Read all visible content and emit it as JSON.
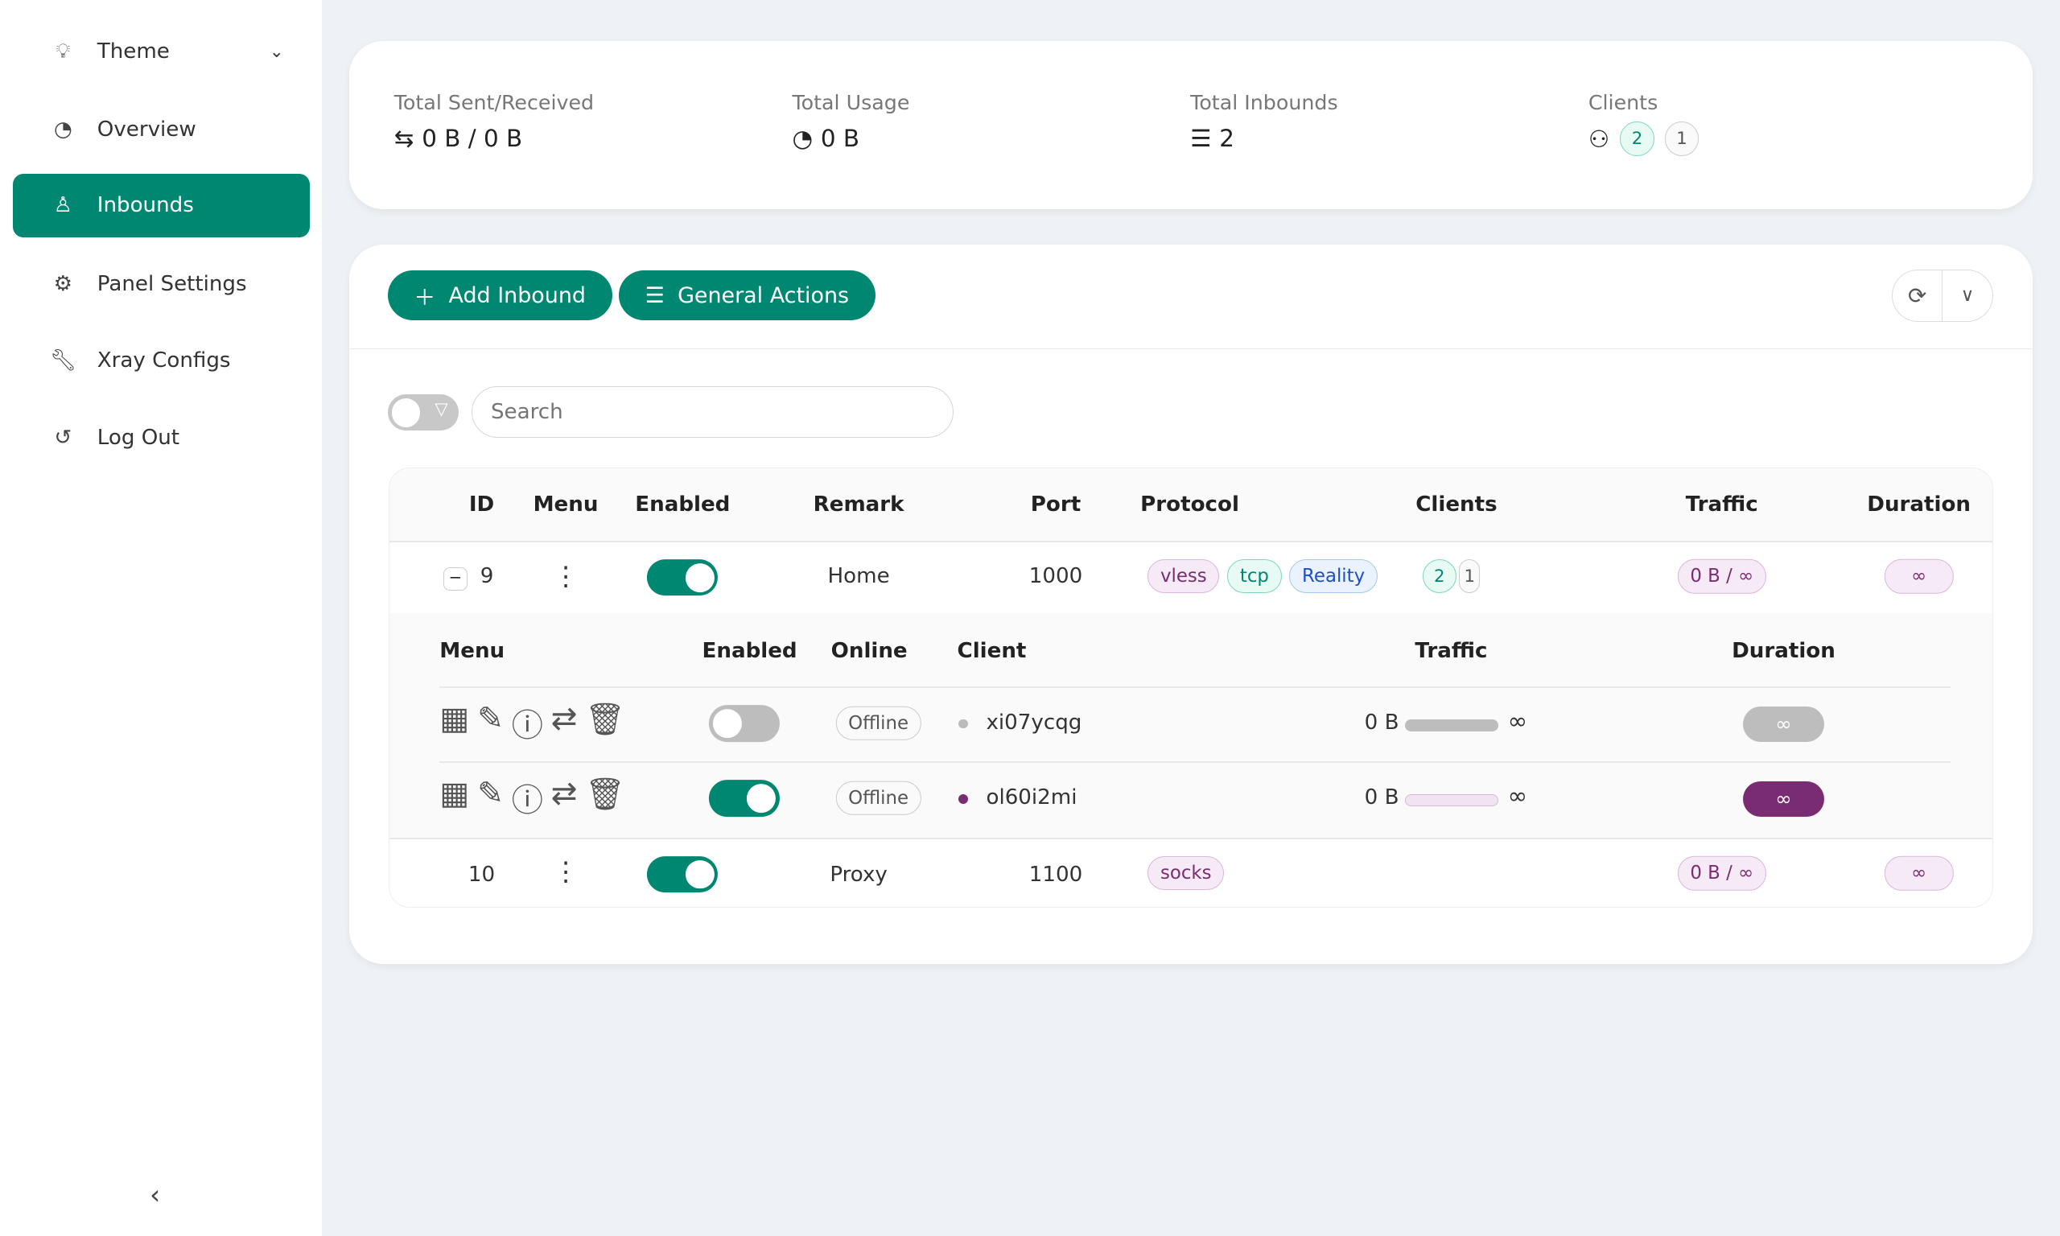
{
  "sidebar": {
    "items": [
      {
        "label": "Theme",
        "icon": "lightbulb-icon"
      },
      {
        "label": "Overview",
        "icon": "dashboard-icon"
      },
      {
        "label": "Inbounds",
        "icon": "user-icon",
        "active": true
      },
      {
        "label": "Panel Settings",
        "icon": "gear-icon"
      },
      {
        "label": "Xray Configs",
        "icon": "tool-icon"
      },
      {
        "label": "Log Out",
        "icon": "logout-icon"
      }
    ]
  },
  "stats": {
    "sent_received": {
      "label": "Total Sent/Received",
      "value": "0 B / 0 B"
    },
    "usage": {
      "label": "Total Usage",
      "value": "0 B"
    },
    "inbounds": {
      "label": "Total Inbounds",
      "value": "2"
    },
    "clients": {
      "label": "Clients",
      "active": "2",
      "total": "1"
    }
  },
  "toolbar": {
    "add_inbound": "Add Inbound",
    "general_actions": "General Actions"
  },
  "search": {
    "placeholder": "Search",
    "value": ""
  },
  "table": {
    "headers": [
      "ID",
      "Menu",
      "Enabled",
      "Remark",
      "Port",
      "Protocol",
      "Clients",
      "Traffic",
      "Duration"
    ],
    "rows": [
      {
        "id": "9",
        "enabled": true,
        "remark": "Home",
        "port": "1000",
        "protocol": [
          "vless",
          "tcp",
          "Reality"
        ],
        "clients_active": "2",
        "clients_total": "1",
        "traffic": "0 B / ∞",
        "duration": "∞"
      },
      {
        "id": "10",
        "enabled": true,
        "remark": "Proxy",
        "port": "1100",
        "protocol": [
          "socks"
        ],
        "traffic": "0 B / ∞",
        "duration": "∞"
      }
    ]
  },
  "sub_table": {
    "headers": [
      "Menu",
      "Enabled",
      "Online",
      "Client",
      "Traffic",
      "Duration"
    ],
    "rows": [
      {
        "enabled": false,
        "online": "Offline",
        "client": "xi07ycqg",
        "used": "0 B",
        "limit": "∞",
        "duration": "∞",
        "usage_fraction": 0
      },
      {
        "enabled": true,
        "online": "Offline",
        "client": "ol60i2mi",
        "used": "0 B",
        "limit": "∞",
        "duration": "∞",
        "usage_fraction": 0
      }
    ]
  },
  "colors": {
    "accent": "#008771",
    "purple": "#7a2c72"
  }
}
